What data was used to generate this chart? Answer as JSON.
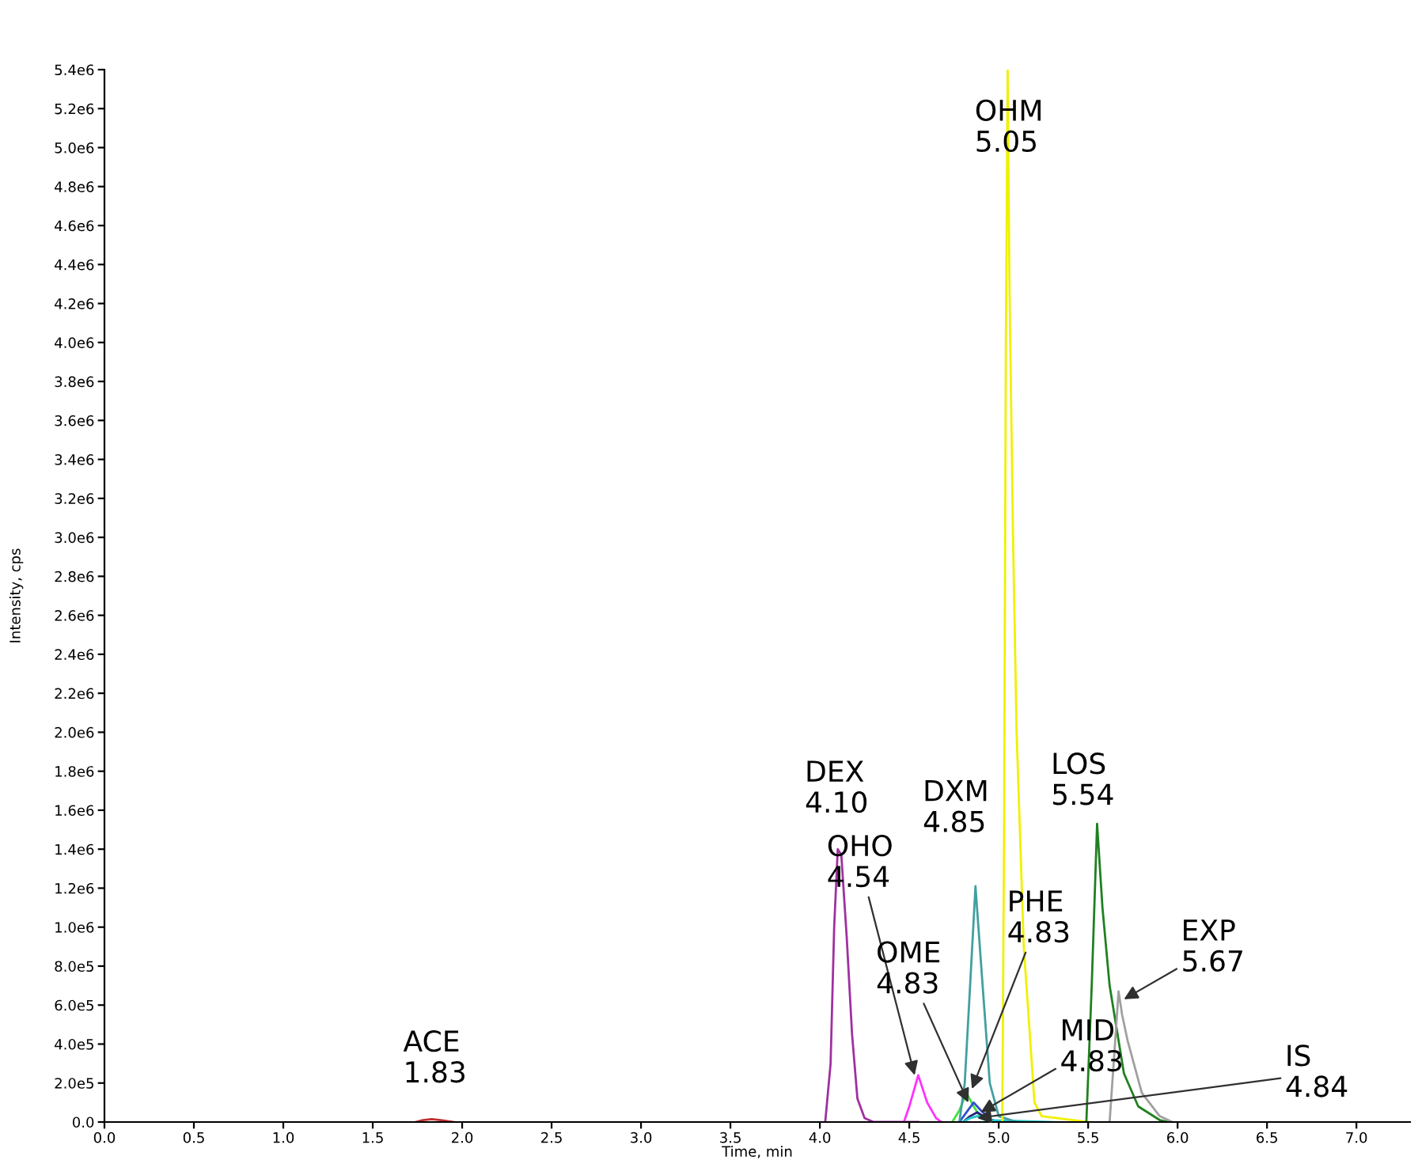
{
  "chart_data": {
    "type": "line",
    "xlabel": "Time, min",
    "ylabel": "Intensity, cps",
    "xlim": [
      0,
      7.3
    ],
    "ylim": [
      0,
      5400000
    ],
    "xticks": [
      {
        "value": 0,
        "label": "0.0"
      },
      0.5,
      {
        "value": 1,
        "label": "1.0"
      },
      1.5,
      {
        "value": 2,
        "label": "2.0"
      },
      2.5,
      {
        "value": 3,
        "label": "3.0"
      },
      3.5,
      {
        "value": 4,
        "label": "4.0"
      },
      4.5,
      {
        "value": 5,
        "label": "5.0"
      },
      5.5,
      {
        "value": 6,
        "label": "6.0"
      },
      6.5,
      {
        "value": 7,
        "label": "7.0"
      }
    ],
    "yticks": [
      {
        "value": 0,
        "label": "0.0"
      },
      {
        "value": 200000,
        "label": "2.0e5"
      },
      {
        "value": 400000,
        "label": "4.0e5"
      },
      {
        "value": 600000,
        "label": "6.0e5"
      },
      {
        "value": 800000,
        "label": "8.0e5"
      },
      {
        "value": 1000000,
        "label": "1.0e6"
      },
      {
        "value": 1200000,
        "label": "1.2e6"
      },
      {
        "value": 1400000,
        "label": "1.4e6"
      },
      {
        "value": 1600000,
        "label": "1.6e6"
      },
      {
        "value": 1800000,
        "label": "1.8e6"
      },
      {
        "value": 2000000,
        "label": "2.0e6"
      },
      {
        "value": 2200000,
        "label": "2.2e6"
      },
      {
        "value": 2400000,
        "label": "2.4e6"
      },
      {
        "value": 2600000,
        "label": "2.6e6"
      },
      {
        "value": 2800000,
        "label": "2.8e6"
      },
      {
        "value": 3000000,
        "label": "3.0e6"
      },
      {
        "value": 3200000,
        "label": "3.2e6"
      },
      {
        "value": 3400000,
        "label": "3.4e6"
      },
      {
        "value": 3600000,
        "label": "3.6e6"
      },
      {
        "value": 3800000,
        "label": "3.8e6"
      },
      {
        "value": 4000000,
        "label": "4.0e6"
      },
      {
        "value": 4200000,
        "label": "4.2e6"
      },
      {
        "value": 4400000,
        "label": "4.4e6"
      },
      {
        "value": 4600000,
        "label": "4.6e6"
      },
      {
        "value": 4800000,
        "label": "4.8e6"
      },
      {
        "value": 5000000,
        "label": "5.0e6"
      },
      {
        "value": 5200000,
        "label": "5.2e6"
      },
      {
        "value": 5400000,
        "label": "5.4e6"
      }
    ],
    "grid": false,
    "legend": false,
    "marker": "none",
    "line_style": "solid",
    "series": [
      {
        "color": "#c03030",
        "x": [
          1.74,
          1.78,
          1.83,
          1.88,
          1.95
        ],
        "values": [
          0,
          10000,
          15000,
          10000,
          0
        ]
      },
      {
        "color": "#a030a0",
        "x": [
          4.03,
          4.06,
          4.08,
          4.1,
          4.12,
          4.15,
          4.18,
          4.21,
          4.25,
          4.3,
          4.55
        ],
        "values": [
          0,
          300000,
          1000000,
          1400000,
          1370000,
          950000,
          450000,
          120000,
          20000,
          0,
          0
        ]
      },
      {
        "color": "#ff30ff",
        "x": [
          4.47,
          4.5,
          4.55,
          4.6,
          4.65,
          4.68
        ],
        "values": [
          0,
          80000,
          240000,
          100000,
          20000,
          0
        ]
      },
      {
        "color": "#40e040",
        "x": [
          4.74,
          4.78,
          4.82,
          4.86,
          4.9,
          4.95
        ],
        "values": [
          0,
          60000,
          150000,
          80000,
          20000,
          0
        ]
      },
      {
        "color": "#3050d0",
        "x": [
          4.78,
          4.82,
          4.86,
          4.9,
          4.95,
          5.0
        ],
        "values": [
          0,
          50000,
          100000,
          60000,
          15000,
          0
        ]
      },
      {
        "color": "#202080",
        "x": [
          4.8,
          4.84,
          4.88,
          4.93,
          4.98
        ],
        "values": [
          0,
          30000,
          50000,
          20000,
          0
        ]
      },
      {
        "color": "#20c8c8",
        "x": [
          4.8,
          4.84,
          4.88,
          4.93,
          5.3
        ],
        "values": [
          0,
          20000,
          30000,
          10000,
          0
        ]
      },
      {
        "color": "#40a0a0",
        "x": [
          4.78,
          4.81,
          4.84,
          4.87,
          4.91,
          4.95,
          5.0,
          5.1
        ],
        "values": [
          0,
          200000,
          700000,
          1210000,
          700000,
          200000,
          30000,
          0
        ]
      },
      {
        "color": "#f0f000",
        "x": [
          5.02,
          5.03,
          5.04,
          5.05,
          5.06,
          5.08,
          5.1,
          5.14,
          5.2,
          5.24,
          5.5
        ],
        "values": [
          0,
          1500000,
          4000000,
          5400000,
          4300000,
          3000000,
          2000000,
          900000,
          100000,
          30000,
          0
        ]
      },
      {
        "color": "#208020",
        "x": [
          5.49,
          5.52,
          5.55,
          5.58,
          5.62,
          5.7,
          5.78,
          5.9,
          5.95
        ],
        "values": [
          0,
          700000,
          1530000,
          1100000,
          700000,
          250000,
          80000,
          10000,
          0
        ]
      },
      {
        "color": "#a0a0a0",
        "x": [
          5.62,
          5.65,
          5.67,
          5.69,
          5.72,
          5.8,
          5.9,
          5.97
        ],
        "values": [
          0,
          400000,
          670000,
          550000,
          420000,
          150000,
          30000,
          0
        ]
      }
    ],
    "annotations": [
      {
        "text": "ACE\n1.83",
        "x": 1.83,
        "y": 15000
      },
      {
        "text": "DEX\n4.10",
        "x": 4.1,
        "y": 1400000
      },
      {
        "text": "OHO\n4.54",
        "x": 4.53,
        "y": 240000
      },
      {
        "text": "OME\n4.83",
        "x": 4.83,
        "y": 100000
      },
      {
        "text": "DXM\n4.85",
        "x": 4.87,
        "y": 1210000
      },
      {
        "text": "PHE\n4.83",
        "x": 4.85,
        "y": 170000
      },
      {
        "text": "MID\n4.83",
        "x": 4.9,
        "y": 50000
      },
      {
        "text": "IS\n4.84",
        "x": 4.88,
        "y": 20000
      },
      {
        "text": "OHM\n5.05",
        "x": 5.05,
        "y": 5400000
      },
      {
        "text": "LOS\n5.54",
        "x": 5.55,
        "y": 1530000
      },
      {
        "text": "EXP\n5.67",
        "x": 5.7,
        "y": 630000
      }
    ]
  }
}
